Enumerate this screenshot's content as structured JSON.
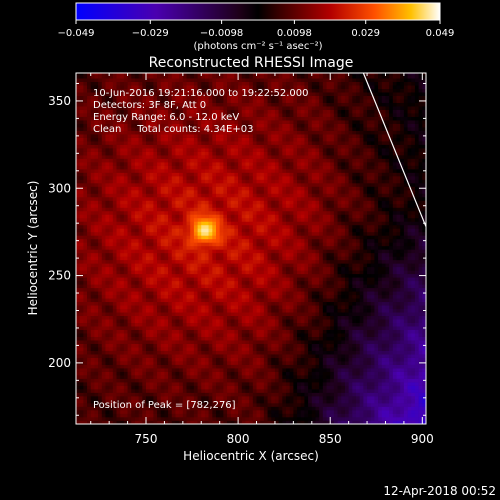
{
  "chart_data": {
    "type": "heatmap",
    "title": "Reconstructed RHESSI Image",
    "xlabel": "Heliocentric X (arcsec)",
    "ylabel": "Heliocentric Y (arcsec)",
    "xlim": [
      712,
      902
    ],
    "ylim": [
      165,
      366
    ],
    "x_ticks": [
      750,
      800,
      850,
      900
    ],
    "y_ticks": [
      200,
      250,
      300,
      350
    ],
    "colorbar": {
      "min": -0.049,
      "max": 0.049,
      "tick_values": [
        -0.049,
        -0.029,
        -0.0098,
        0.0098,
        0.029,
        0.049
      ],
      "tick_labels": [
        "−0.049",
        "−0.029",
        "−0.0098",
        "0.0098",
        "0.029",
        "0.049"
      ],
      "unit_label": "(photons cm⁻² s⁻¹ asec⁻²)"
    },
    "info_lines": [
      "10-Jun-2016 19:21:16.000 to 19:22:52.000",
      "Detectors: 3F 8F, Att 0",
      "Energy Range: 6.0 - 12.0 keV",
      "Clean     Total counts: 4.34E+03"
    ],
    "peak_label": "Position of Peak = [782,276]",
    "peak": {
      "x": 782,
      "y": 276
    },
    "limb_line": [
      [
        868,
        366
      ],
      [
        902,
        278
      ]
    ],
    "colors": {
      "background": "#000000",
      "text": "#ffffff",
      "limb": "#ffffff"
    }
  },
  "footer": {
    "timestamp": "12-Apr-2018 00:52"
  }
}
